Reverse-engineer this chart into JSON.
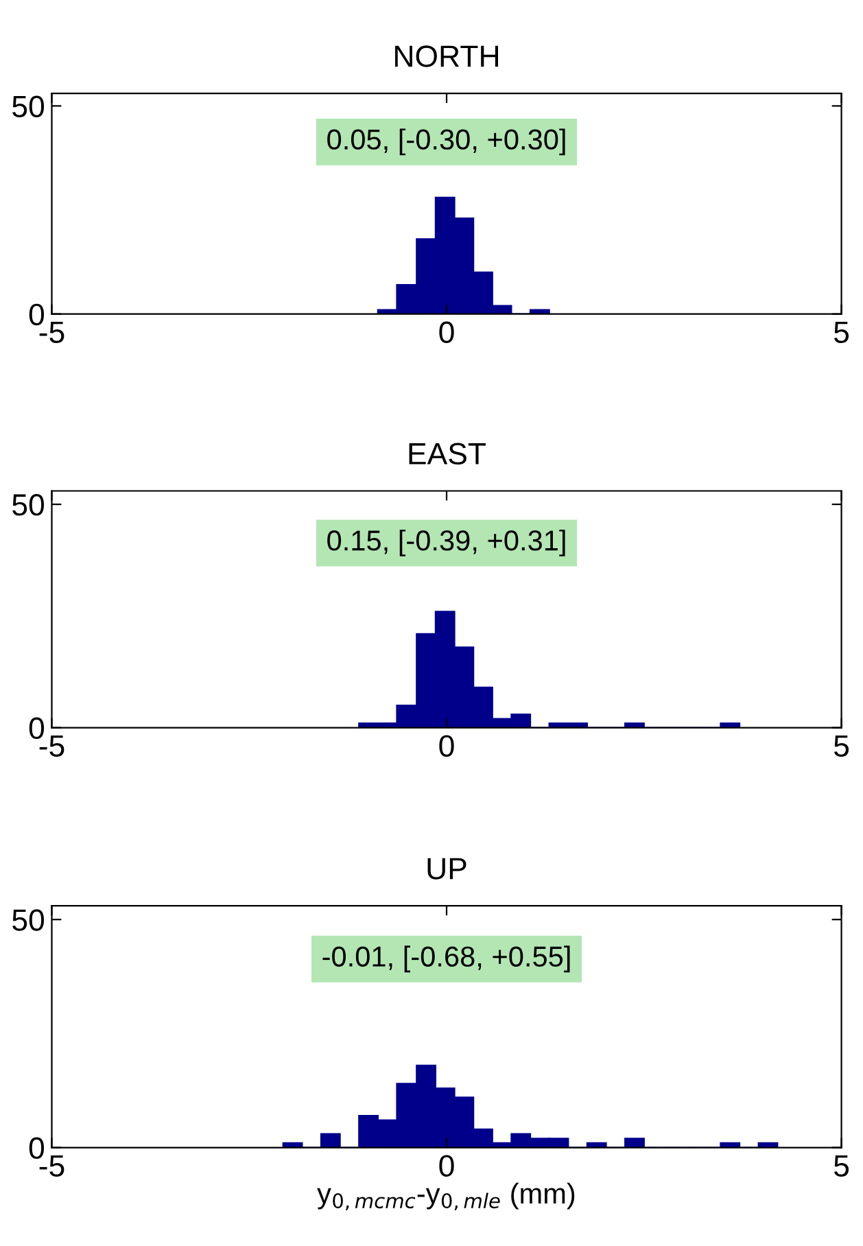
{
  "chart_data": [
    {
      "type": "histogram",
      "title": "NORTH",
      "bins": [
        -0.87,
        -0.63,
        -0.38,
        -0.14,
        0.1,
        0.34,
        0.58,
        0.82,
        1.06,
        1.3
      ],
      "values": [
        1,
        7,
        18,
        28,
        23,
        10,
        2,
        0,
        1
      ],
      "color": "#00008b",
      "xlim": [
        -5,
        5
      ],
      "ylim": [
        0,
        53
      ],
      "xticks": [
        -5,
        0,
        5
      ],
      "yticks": [
        0,
        50
      ],
      "annotations": [
        "0.05, [-0.30, +0.30]"
      ]
    },
    {
      "type": "histogram",
      "title": "EAST",
      "bins": [
        -1.11,
        -0.87,
        -0.63,
        -0.38,
        -0.14,
        0.1,
        0.34,
        0.58,
        0.82,
        1.06,
        1.3,
        1.54,
        1.78,
        2.02,
        2.26,
        2.5,
        2.74,
        2.99,
        3.23,
        3.47,
        3.71
      ],
      "values": [
        1,
        1,
        5,
        21,
        26,
        18,
        9,
        2,
        3,
        0,
        1,
        1,
        0,
        0,
        1,
        0,
        0,
        0,
        0,
        1
      ],
      "color": "#00008b",
      "xlim": [
        -5,
        5
      ],
      "ylim": [
        0,
        53
      ],
      "xticks": [
        -5,
        0,
        5
      ],
      "yticks": [
        0,
        50
      ],
      "annotations": [
        "0.15, [-0.39, +0.31]"
      ]
    },
    {
      "type": "histogram",
      "title": "UP",
      "xlabel": "y$_{0,mcmc}$-y$_{0,mle}$ (mm)",
      "bins": [
        -2.07,
        -1.83,
        -1.59,
        -1.35,
        -1.11,
        -0.87,
        -0.63,
        -0.38,
        -0.14,
        0.1,
        0.34,
        0.58,
        0.82,
        1.06,
        1.3,
        1.54,
        1.78,
        2.02,
        2.26,
        2.5,
        2.74,
        2.99,
        3.23,
        3.47,
        3.71,
        3.95,
        4.19
      ],
      "values": [
        1,
        0,
        3,
        0,
        7,
        6,
        14,
        18,
        13,
        11,
        4,
        1,
        3,
        2,
        2,
        0,
        1,
        0,
        2,
        0,
        0,
        0,
        0,
        1,
        0,
        1
      ],
      "color": "#00008b",
      "xlim": [
        -5,
        5
      ],
      "ylim": [
        0,
        53
      ],
      "xticks": [
        -5,
        0,
        5
      ],
      "yticks": [
        0,
        50
      ],
      "annotations": [
        "-0.01, [-0.68, +0.55]"
      ]
    }
  ]
}
